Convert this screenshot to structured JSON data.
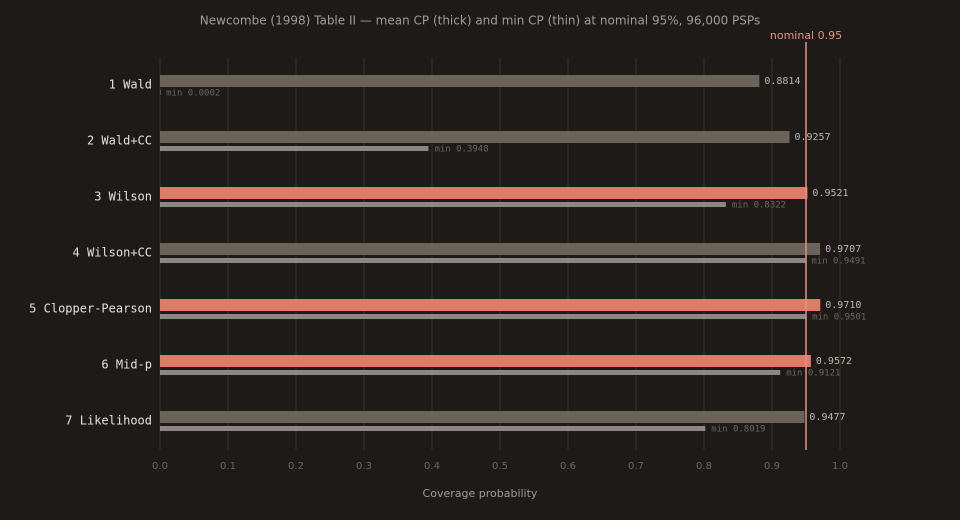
{
  "chart_data": {
    "type": "bar",
    "orientation": "horizontal",
    "title": "Newcombe (1998) Table II — mean CP (thick) and min CP (thin) at nominal 95%, 96,000 PSPs",
    "xlabel": "Coverage probability",
    "categories": [
      "1 Wald",
      "2 Wald+CC",
      "3 Wilson",
      "4 Wilson+CC",
      "5 Clopper-Pearson",
      "6 Mid-p",
      "7 Likelihood"
    ],
    "series": [
      {
        "colors": [
          "#6b625a",
          "#6b625a",
          "#e07b6a",
          "#6b625a",
          "#e07b6a",
          "#e07b6a",
          "#6b625a"
        ],
        "values": [
          0.8814,
          0.9257,
          0.9521,
          0.9707,
          0.971,
          0.9572,
          0.9477
        ],
        "value_labels": [
          "0.8814",
          "0.9257",
          "0.9521",
          "0.9707",
          "0.9710",
          "0.9572",
          "0.9477"
        ]
      },
      {
        "color": "#8c8782",
        "values": [
          0.0002,
          0.3948,
          0.8322,
          0.9491,
          0.9501,
          0.9121,
          0.8019
        ],
        "value_labels": [
          "min 0.0002",
          "min 0.3948",
          "min 0.8322",
          "min 0.9491",
          "min 0.9501",
          "min 0.9121",
          "min 0.8019"
        ]
      }
    ],
    "xlim": [
      0,
      1
    ],
    "xticks": [
      {
        "value": 0,
        "label": "0.0"
      },
      0.1,
      0.2,
      0.3,
      0.4,
      0.5,
      0.6,
      0.7,
      0.8,
      0.9,
      {
        "value": 1,
        "label": "1.0"
      }
    ],
    "grid": true,
    "reference_line": {
      "value": 0.95,
      "label": "nominal 0.95",
      "color": "#e8907e"
    }
  }
}
